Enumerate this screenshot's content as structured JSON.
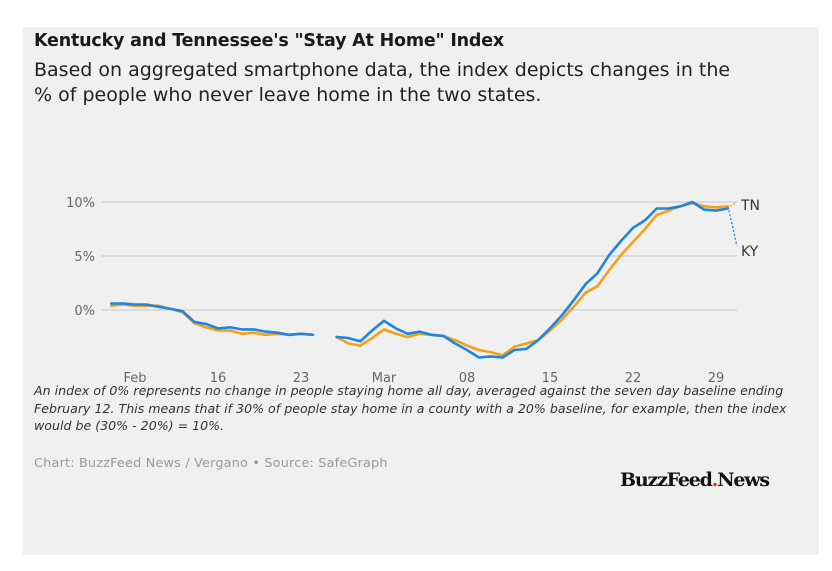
{
  "header": {
    "title": "Kentucky and Tennessee's \"Stay At Home\" Index",
    "subtitle": "Based on aggregated smartphone data, the index depicts changes in the % of people who never leave home in the two states."
  },
  "footer": {
    "note": "An index of 0% represents no change in people staying home all day, averaged against the seven day baseline ending February 12. This means that if 30% of people stay home in a county with a 20% baseline, for example, then the index would be (30% - 20%) = 10%.",
    "source": "Chart: BuzzFeed News / Vergano • Source: SafeGraph",
    "logo_main": "BuzzFeed",
    "logo_dot": ".",
    "logo_end": "News"
  },
  "colors": {
    "KY": "#1f86e0",
    "TN": "#f5a017",
    "grid": "#cccccc",
    "logo_dot": "#ee3322"
  },
  "chart_data": {
    "type": "line",
    "title": "Kentucky and Tennessee's \"Stay At Home\" Index",
    "xlabel": "",
    "ylabel": "",
    "ylim": [
      -5,
      10
    ],
    "grid": true,
    "y_ticks": [
      {
        "value": 10,
        "label": "10%"
      },
      {
        "value": 5,
        "label": "5%"
      },
      {
        "value": 0,
        "label": "0%"
      }
    ],
    "x_ticks": [
      {
        "day": 9,
        "label": "Feb"
      },
      {
        "day": 16,
        "label": "16"
      },
      {
        "day": 23,
        "label": "23"
      },
      {
        "day": 30,
        "label": "Mar"
      },
      {
        "day": 37,
        "label": "08"
      },
      {
        "day": 44,
        "label": "15"
      },
      {
        "day": 51,
        "label": "22"
      },
      {
        "day": 58,
        "label": "29"
      }
    ],
    "x_note": "day index counts days from Feb 0 (Feb 1 = day 1, Mar 1 = day 30); data spans Feb 7 to Mar 30 with a missing day on Feb 25",
    "start_day": 7,
    "series": [
      {
        "name": "KY",
        "label": "KY",
        "values": [
          0.6,
          0.6,
          0.5,
          0.5,
          0.3,
          0.1,
          -0.1,
          -1.1,
          -1.3,
          -1.7,
          -1.6,
          -1.8,
          -1.8,
          -2.0,
          -2.1,
          -2.3,
          -2.2,
          -2.3,
          null,
          -2.5,
          -2.6,
          -2.9,
          -1.9,
          -1.0,
          -1.7,
          -2.2,
          -2.0,
          -2.3,
          -2.4,
          -3.1,
          -3.7,
          -4.4,
          -4.3,
          -4.4,
          -3.7,
          -3.6,
          -2.8,
          -1.7,
          -0.5,
          0.9,
          2.4,
          3.4,
          5.1,
          6.4,
          7.6,
          8.3,
          9.4,
          9.4,
          9.6,
          10.0,
          9.3,
          9.2,
          9.4
        ]
      },
      {
        "name": "TN",
        "label": "TN",
        "values": [
          0.4,
          0.5,
          0.4,
          0.4,
          0.4,
          0.1,
          -0.2,
          -1.2,
          -1.6,
          -1.9,
          -1.9,
          -2.2,
          -2.1,
          -2.3,
          -2.2,
          -2.3,
          -2.2,
          -2.3,
          null,
          -2.5,
          -3.1,
          -3.3,
          -2.6,
          -1.8,
          -2.2,
          -2.5,
          -2.2,
          -2.3,
          -2.4,
          -2.8,
          -3.3,
          -3.7,
          -3.9,
          -4.2,
          -3.4,
          -3.1,
          -2.8,
          -1.9,
          -0.9,
          0.3,
          1.6,
          2.2,
          3.7,
          5.1,
          6.3,
          7.5,
          8.8,
          9.2,
          9.6,
          9.9,
          9.6,
          9.5,
          9.6
        ]
      }
    ]
  }
}
